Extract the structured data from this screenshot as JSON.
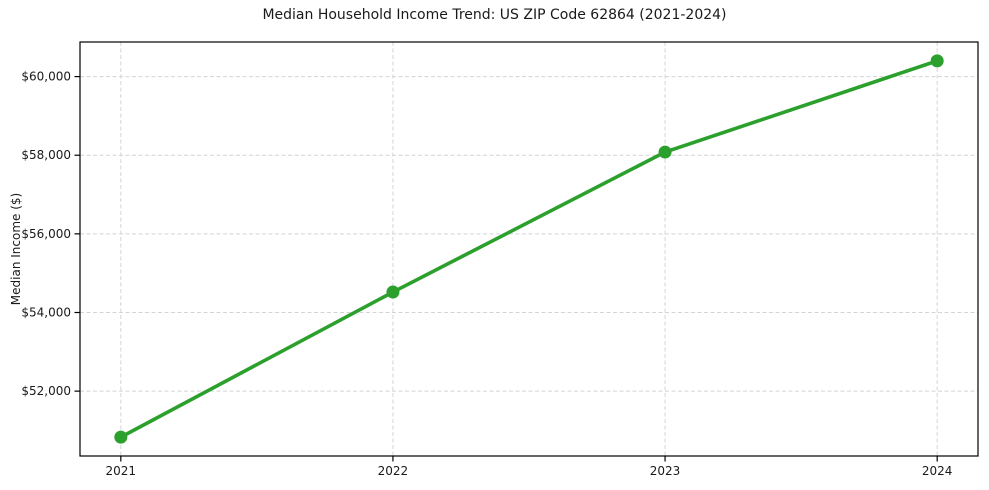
{
  "chart_data": {
    "type": "line",
    "title": "Median Household Income Trend: US ZIP Code 62864 (2021-2024)",
    "xlabel": "",
    "ylabel": "Median Income ($)",
    "x": [
      2021,
      2022,
      2023,
      2024
    ],
    "xtick_labels": [
      "2021",
      "2022",
      "2023",
      "2024"
    ],
    "series": [
      {
        "values": [
          50830,
          54520,
          58080,
          60400
        ]
      }
    ],
    "yticks": [
      52000,
      54000,
      56000,
      58000,
      60000
    ],
    "ytick_labels": [
      "$52,000",
      "$54,000",
      "$56,000",
      "$58,000",
      "$60,000"
    ],
    "xlim": [
      2020.85,
      2024.15
    ],
    "ylim": [
      50350,
      60880
    ],
    "grid": true,
    "grid_style": "dashed",
    "legend_position": "none",
    "marker": "circle",
    "colors": {
      "line": "#2ca02c",
      "marker": "#2ca02c",
      "grid": "#d4d4d4",
      "axis": "#000000",
      "text": "#1a1a1a",
      "background": "#ffffff"
    }
  }
}
